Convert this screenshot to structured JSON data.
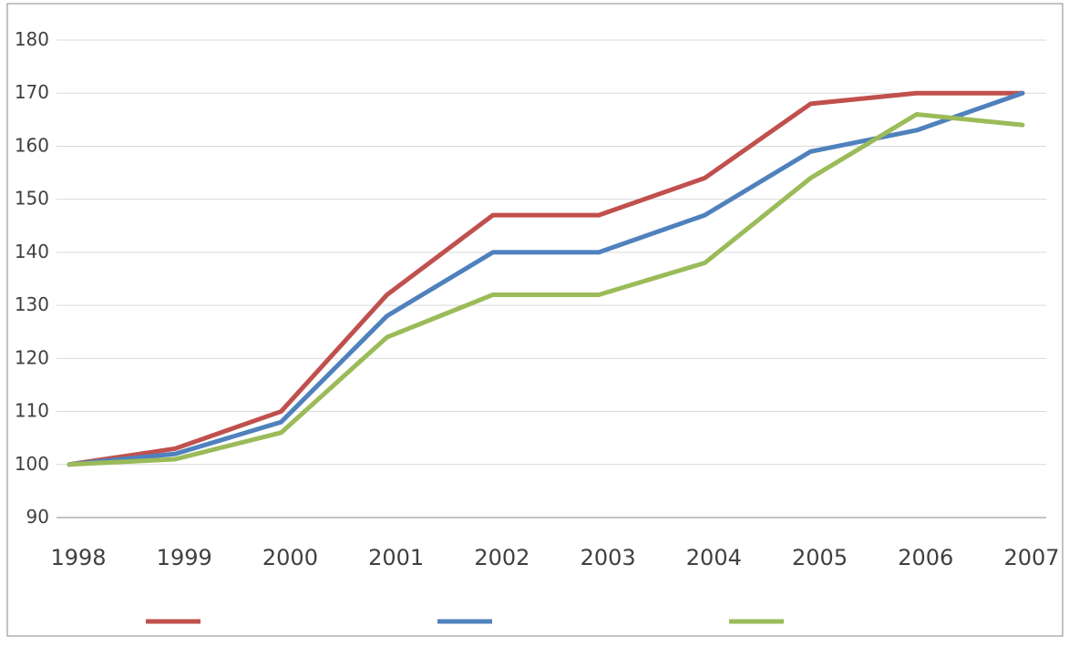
{
  "chart_data": {
    "type": "line",
    "title": "",
    "xlabel": "",
    "ylabel": "",
    "categories": [
      "1998",
      "1999",
      "2000",
      "2001",
      "2002",
      "2003",
      "2004",
      "2005",
      "2006",
      "2007"
    ],
    "ylim": [
      90,
      180
    ],
    "ytick_labels": [
      "90",
      "100",
      "110",
      "120",
      "130",
      "140",
      "150",
      "160",
      "170",
      "180"
    ],
    "grid": true,
    "legend": "bottom",
    "series": [
      {
        "color": "#c0504d",
        "values": [
          100,
          103,
          110,
          132,
          147,
          147,
          154,
          168,
          170,
          170
        ]
      },
      {
        "color": "#4f81bd",
        "values": [
          100,
          102,
          108,
          128,
          140,
          140,
          147,
          159,
          163,
          170
        ]
      },
      {
        "color": "#9bbb59",
        "values": [
          100,
          101,
          106,
          124,
          132,
          132,
          138,
          154,
          166,
          164
        ]
      }
    ]
  }
}
